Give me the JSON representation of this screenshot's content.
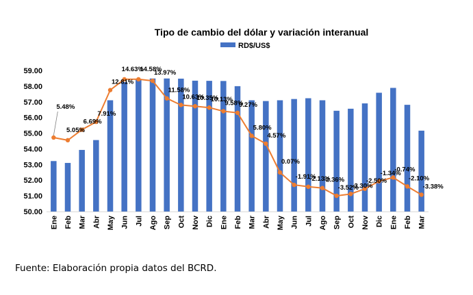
{
  "chart_data": {
    "type": "bar+line",
    "title": "Tipo de cambio del dólar y variación interanual",
    "categories": [
      "Ene",
      "Feb",
      "Mar",
      "Abr",
      "May",
      "Jun",
      "Jul",
      "Ago",
      "Sep",
      "Oct",
      "Nov",
      "Dic",
      "Ene",
      "Feb",
      "Mar",
      "Abr",
      "May",
      "Jun",
      "Jul",
      "Ago",
      "Sep",
      "Oct",
      "Nov",
      "Dic",
      "Ene",
      "Feb",
      "Mar"
    ],
    "series": [
      {
        "name": "RD$/US$",
        "type": "bar",
        "color": "#4472C4",
        "values": [
          53.22,
          53.1,
          53.93,
          54.56,
          57.1,
          58.26,
          58.46,
          58.49,
          58.49,
          58.48,
          58.35,
          58.34,
          58.33,
          58.0,
          57.1,
          57.05,
          57.1,
          57.18,
          57.23,
          57.1,
          56.43,
          56.56,
          56.9,
          57.58,
          57.89,
          56.81,
          55.16
        ]
      },
      {
        "name": "",
        "type": "line",
        "color": "#ED7D31",
        "labels": [
          "5.48%",
          "5.05%",
          "6.69%",
          "7.91%",
          "12.81%",
          "14.63%",
          "14.58%",
          "13.97%",
          "11.58%",
          "10.63%",
          "10.35%",
          "10.13%",
          "9.58%",
          "9.27%",
          "5.80%",
          "4.57%",
          "0.07%",
          "-1.91%",
          "-2.13%",
          "-2.36%",
          "-3.52%",
          "-3.30%",
          "-2.50%",
          "-1.34%",
          "-0.74%",
          "-2.10%",
          "-3.38%"
        ],
        "plot_y": [
          54.72,
          54.55,
          55.22,
          55.72,
          57.75,
          58.44,
          58.44,
          58.34,
          57.22,
          56.8,
          56.72,
          56.63,
          56.4,
          56.3,
          54.83,
          54.33,
          52.49,
          51.7,
          51.58,
          51.5,
          51.0,
          51.12,
          51.45,
          51.93,
          52.17,
          51.6,
          51.07
        ]
      }
    ],
    "ylim": [
      50.0,
      59.0
    ],
    "yticks": [
      "50.00",
      "51.00",
      "52.00",
      "53.00",
      "54.00",
      "55.00",
      "56.00",
      "57.00",
      "58.00",
      "59.00"
    ],
    "grid": false,
    "legend": "top"
  },
  "source_note": "Fuente: Elaboración propia datos del BCRD."
}
